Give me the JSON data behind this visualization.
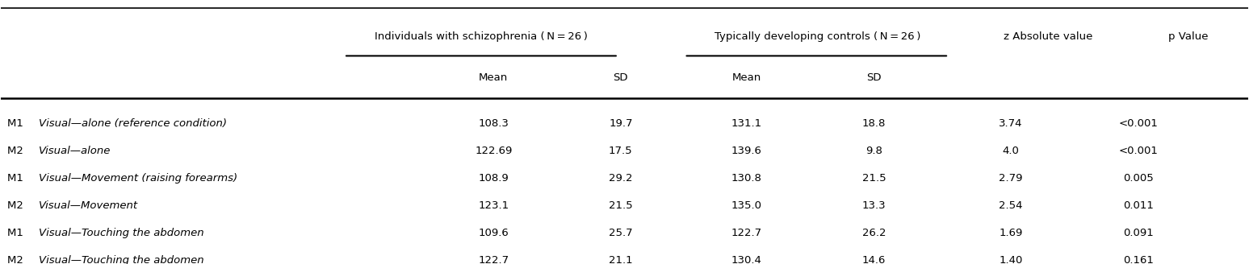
{
  "col_headers_top": [
    "",
    "Individuals with schizophrenia (N = 26)",
    "Typically developing controls (N = 26)",
    "z Absolute value",
    "p Value"
  ],
  "col_headers_sub": [
    "Mean",
    "SD",
    "Mean",
    "SD"
  ],
  "rows": [
    {
      "label_prefix": "M1",
      "label_italic": "Visual—alone (reference condition)",
      "sz_mean": "108.3",
      "sz_sd": "19.7",
      "td_mean": "131.1",
      "td_sd": "18.8",
      "z": "3.74",
      "p": "<0.001"
    },
    {
      "label_prefix": "M2",
      "label_italic": "Visual—alone",
      "sz_mean": "122.69",
      "sz_sd": "17.5",
      "td_mean": "139.6",
      "td_sd": "9.8",
      "z": "4.0",
      "p": "<0.001"
    },
    {
      "label_prefix": "M1",
      "label_italic": "Visual—Movement (raising forearms)",
      "sz_mean": "108.9",
      "sz_sd": "29.2",
      "td_mean": "130.8",
      "td_sd": "21.5",
      "z": "2.79",
      "p": "0.005"
    },
    {
      "label_prefix": "M2",
      "label_italic": "Visual—Movement",
      "sz_mean": "123.1",
      "sz_sd": "21.5",
      "td_mean": "135.0",
      "td_sd": "13.3",
      "z": "2.54",
      "p": "0.011"
    },
    {
      "label_prefix": "M1",
      "label_italic": "Visual—Touching the abdomen",
      "sz_mean": "109.6",
      "sz_sd": "25.7",
      "td_mean": "122.7",
      "td_sd": "26.2",
      "z": "1.69",
      "p": "0.091"
    },
    {
      "label_prefix": "M2",
      "label_italic": "Visual—Touching the abdomen",
      "sz_mean": "122.7",
      "sz_sd": "21.1",
      "td_mean": "130.4",
      "td_sd": "14.6",
      "z": "1.40",
      "p": "0.161"
    }
  ],
  "background_color": "#ffffff",
  "text_color": "#000000",
  "font_size": 9.5,
  "header_font_size": 9.5
}
